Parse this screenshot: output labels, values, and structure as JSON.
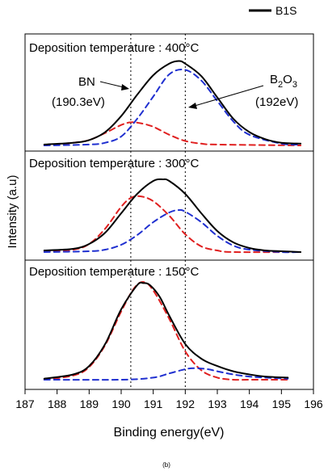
{
  "chart_data": {
    "type": "line",
    "caption": "(b)",
    "legend": {
      "label": "B1S",
      "position": "top-right"
    },
    "xlabel": "Binding energy(eV)",
    "ylabel": "Intensity (a.u)",
    "xlim": [
      187,
      196
    ],
    "x_ticks": [
      "187",
      "188",
      "189",
      "190",
      "191",
      "192",
      "193",
      "194",
      "195",
      "196"
    ],
    "reference_lines_x": [
      190.3,
      192.0
    ],
    "annotations": {
      "bn_name": "BN",
      "bn_energy": "(190.3eV)",
      "b2o3_prefix": "B",
      "b2o3_sub1": "2",
      "b2o3_mid": "O",
      "b2o3_sub2": "3",
      "b2o3_energy": "(192eV)"
    },
    "colors": {
      "total": "#000000",
      "bn": "#e02020",
      "b2o3": "#2030d0"
    },
    "panels": [
      {
        "title": "Deposition temperature : 400°C",
        "ylim": [
          0,
          1
        ],
        "total": {
          "x": [
            187.6,
            188.5,
            189.0,
            189.5,
            190.0,
            190.5,
            191.0,
            191.5,
            191.8,
            192.0,
            192.5,
            193.0,
            193.5,
            194.0,
            194.5,
            195.0,
            195.6
          ],
          "y": [
            0.01,
            0.03,
            0.06,
            0.15,
            0.33,
            0.57,
            0.79,
            0.92,
            0.95,
            0.92,
            0.78,
            0.54,
            0.3,
            0.15,
            0.07,
            0.03,
            0.02
          ]
        },
        "bn": {
          "x": [
            187.6,
            188.5,
            189.0,
            189.5,
            190.0,
            190.3,
            190.6,
            191.0,
            191.5,
            192.0,
            192.5,
            193.0,
            195.6
          ],
          "y": [
            0.0,
            0.03,
            0.06,
            0.14,
            0.23,
            0.26,
            0.25,
            0.21,
            0.12,
            0.05,
            0.02,
            0.01,
            0.0
          ]
        },
        "b2o3": {
          "x": [
            187.6,
            189.0,
            189.5,
            190.0,
            190.5,
            191.0,
            191.5,
            192.0,
            192.5,
            193.0,
            193.5,
            194.0,
            195.0,
            195.6
          ],
          "y": [
            0.0,
            0.01,
            0.03,
            0.1,
            0.3,
            0.55,
            0.8,
            0.85,
            0.73,
            0.5,
            0.27,
            0.12,
            0.02,
            0.01
          ]
        }
      },
      {
        "title": "Deposition temperature : 300°C",
        "ylim": [
          0,
          1
        ],
        "total": {
          "x": [
            187.6,
            188.5,
            189.0,
            189.5,
            190.0,
            190.5,
            191.0,
            191.3,
            191.5,
            192.0,
            192.5,
            193.0,
            193.5,
            194.0,
            194.5,
            195.0,
            195.6
          ],
          "y": [
            0.02,
            0.04,
            0.1,
            0.24,
            0.48,
            0.72,
            0.88,
            0.9,
            0.88,
            0.72,
            0.48,
            0.26,
            0.12,
            0.05,
            0.02,
            0.01,
            0.0
          ]
        },
        "bn": {
          "x": [
            187.6,
            188.5,
            189.0,
            189.5,
            190.0,
            190.3,
            190.6,
            191.0,
            191.5,
            192.0,
            192.5,
            193.0,
            193.5,
            195.6
          ],
          "y": [
            0.01,
            0.03,
            0.1,
            0.29,
            0.56,
            0.67,
            0.69,
            0.63,
            0.45,
            0.22,
            0.07,
            0.02,
            0.0,
            0.0
          ]
        },
        "b2o3": {
          "x": [
            187.6,
            189.0,
            189.5,
            190.0,
            190.5,
            191.0,
            191.5,
            191.8,
            192.0,
            192.5,
            193.0,
            193.5,
            194.0,
            195.0,
            195.6
          ],
          "y": [
            0.0,
            0.01,
            0.03,
            0.09,
            0.21,
            0.37,
            0.49,
            0.52,
            0.5,
            0.37,
            0.2,
            0.08,
            0.03,
            0.0,
            0.0
          ]
        }
      },
      {
        "title": "Deposition temperature : 150°C",
        "ylim": [
          0,
          1
        ],
        "total": {
          "x": [
            187.6,
            188.5,
            189.0,
            189.5,
            190.0,
            190.5,
            190.7,
            190.9,
            191.2,
            191.5,
            192.0,
            192.5,
            193.0,
            193.5,
            194.0,
            194.5,
            195.2
          ],
          "y": [
            0.01,
            0.05,
            0.13,
            0.34,
            0.67,
            0.9,
            0.92,
            0.9,
            0.79,
            0.61,
            0.34,
            0.2,
            0.13,
            0.08,
            0.05,
            0.03,
            0.02
          ]
        },
        "bn": {
          "x": [
            187.6,
            188.5,
            189.0,
            189.5,
            190.0,
            190.4,
            190.7,
            191.0,
            191.5,
            192.0,
            192.5,
            193.0,
            193.5,
            194.0,
            195.2
          ],
          "y": [
            0.0,
            0.04,
            0.12,
            0.33,
            0.65,
            0.87,
            0.93,
            0.85,
            0.58,
            0.27,
            0.09,
            0.02,
            0.0,
            0.0,
            0.0
          ]
        },
        "b2o3": {
          "x": [
            187.6,
            190.0,
            191.0,
            191.5,
            192.0,
            192.3,
            192.7,
            193.0,
            193.5,
            194.0,
            194.5,
            195.2
          ],
          "y": [
            0.0,
            0.0,
            0.02,
            0.06,
            0.1,
            0.11,
            0.1,
            0.08,
            0.05,
            0.03,
            0.02,
            0.01
          ]
        }
      }
    ]
  }
}
